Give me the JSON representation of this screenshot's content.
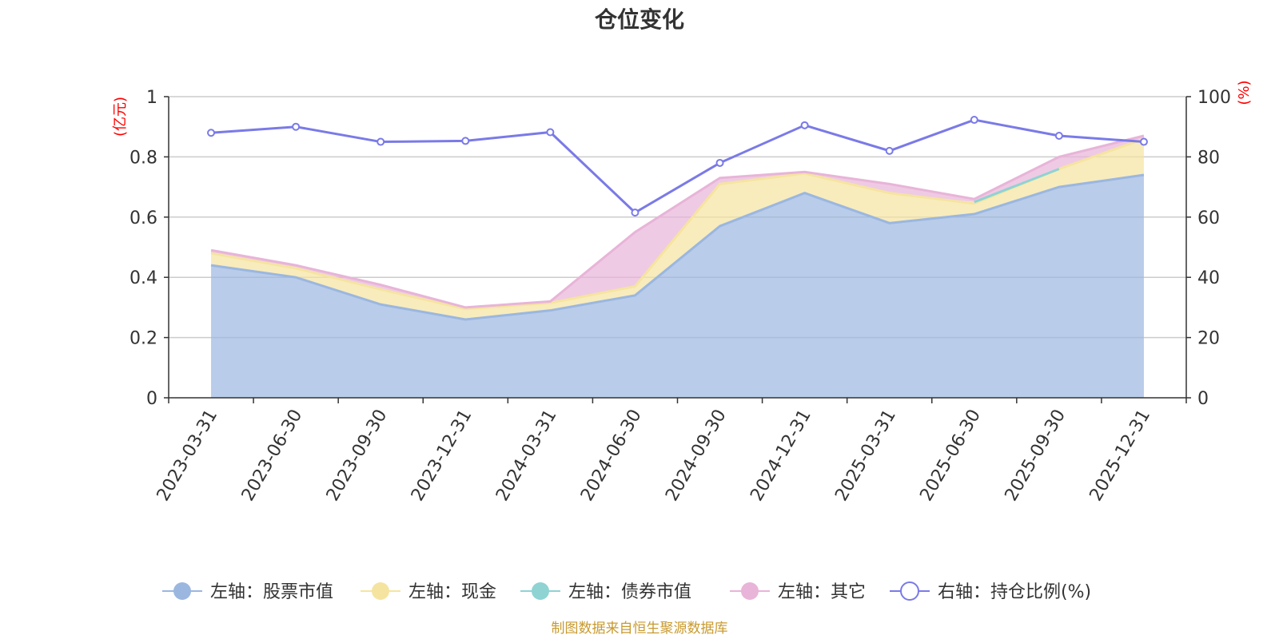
{
  "chart_data": {
    "type": "area",
    "title": "仓位变化",
    "left_axis_unit": "(亿元)",
    "right_axis_unit": "(%)",
    "categories": [
      "2023-03-31",
      "2023-06-30",
      "2023-09-30",
      "2023-12-31",
      "2024-03-31",
      "2024-06-30",
      "2024-09-30",
      "2024-12-31",
      "2025-03-31",
      "2025-06-30",
      "2025-09-30",
      "2025-12-31"
    ],
    "left_ylim": [
      0,
      1
    ],
    "left_ticks": [
      "0",
      "0.2",
      "0.4",
      "0.6",
      "0.8",
      "1"
    ],
    "left_tick_values": [
      0,
      0.2,
      0.4,
      0.6,
      0.8,
      1
    ],
    "right_ylim": [
      0,
      100
    ],
    "right_ticks": [
      "0",
      "20",
      "40",
      "60",
      "80",
      "100"
    ],
    "right_tick_values": [
      0,
      20,
      40,
      60,
      80,
      100
    ],
    "series": [
      {
        "name": "左轴：股票市值",
        "axis": "left",
        "stack": true,
        "color": "#9bb7e0",
        "values": [
          0.44,
          0.4,
          0.31,
          0.26,
          0.29,
          0.34,
          0.57,
          0.68,
          0.58,
          0.61,
          0.7,
          0.74
        ]
      },
      {
        "name": "左轴：现金",
        "axis": "left",
        "stack": true,
        "color": "#f5e4a0",
        "values": [
          0.04,
          0.03,
          0.05,
          0.035,
          0.025,
          0.03,
          0.14,
          0.065,
          0.1,
          0.035,
          0.06,
          0.12
        ]
      },
      {
        "name": "左轴：债券市值",
        "axis": "left",
        "stack": true,
        "color": "#8fd3d3",
        "values": [
          null,
          null,
          null,
          null,
          null,
          null,
          null,
          null,
          null,
          0.005,
          0.0,
          null
        ]
      },
      {
        "name": "左轴：其它",
        "axis": "left",
        "stack": true,
        "color": "#e8b4d8",
        "values": [
          0.01,
          0.01,
          0.015,
          0.005,
          0.005,
          0.18,
          0.02,
          0.005,
          0.03,
          0.01,
          0.04,
          0.01
        ]
      },
      {
        "name": "右轴：持仓比例(%)",
        "axis": "right",
        "type": "line",
        "color": "#7a7ae8",
        "values": [
          88,
          90,
          85,
          85.3,
          88.2,
          61.5,
          78,
          90.5,
          82,
          92.3,
          87,
          85
        ]
      }
    ],
    "legend": [
      {
        "label": "左轴：股票市值",
        "color": "#9bb7e0",
        "style": "filled"
      },
      {
        "label": "左轴：现金",
        "color": "#f5e4a0",
        "style": "filled"
      },
      {
        "label": "左轴：债券市值",
        "color": "#8fd3d3",
        "style": "filled"
      },
      {
        "label": "左轴：其它",
        "color": "#e8b4d8",
        "style": "filled"
      },
      {
        "label": "右轴：持仓比例(%)",
        "color": "#7a7ae8",
        "style": "hollow"
      }
    ],
    "source": "制图数据来自恒生聚源数据库"
  }
}
